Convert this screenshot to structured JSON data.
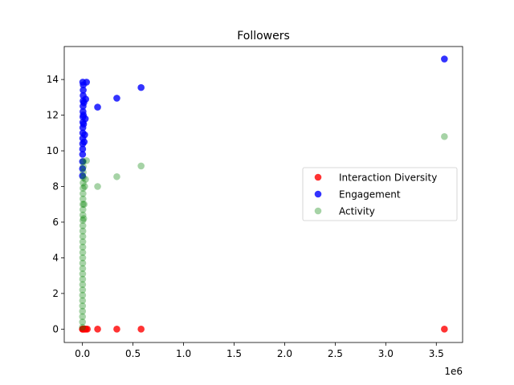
{
  "chart_data": {
    "type": "scatter",
    "title": "Followers",
    "xlabel": "",
    "ylabel": "",
    "x_offset_label": "1e6",
    "xlim": [
      -180000,
      3760000
    ],
    "ylim": [
      -0.75,
      15.85
    ],
    "x_ticks": [
      0,
      500000,
      1000000,
      1500000,
      2000000,
      2500000,
      3000000,
      3500000
    ],
    "x_tick_labels": [
      "0.0",
      "0.5",
      "1.0",
      "1.5",
      "2.0",
      "2.5",
      "3.0",
      "3.5"
    ],
    "y_ticks": [
      0,
      2,
      4,
      6,
      8,
      10,
      12,
      14
    ],
    "y_tick_labels": [
      "0",
      "2",
      "4",
      "6",
      "8",
      "10",
      "12",
      "14"
    ],
    "grid": false,
    "legend_position": "center-right",
    "series": [
      {
        "name": "Interaction Diversity",
        "color": "#ff0000",
        "alpha": 0.8,
        "points": [
          [
            0,
            0
          ],
          [
            2000,
            0
          ],
          [
            5000,
            0
          ],
          [
            8000,
            0
          ],
          [
            12000,
            0
          ],
          [
            18000,
            0
          ],
          [
            25000,
            0
          ],
          [
            35000,
            0
          ],
          [
            48000,
            0
          ],
          [
            150000,
            0
          ],
          [
            340000,
            0
          ],
          [
            580000,
            0
          ],
          [
            3580000,
            0
          ]
        ]
      },
      {
        "name": "Engagement",
        "color": "#0000ff",
        "alpha": 0.8,
        "points": [
          [
            500,
            8.6
          ],
          [
            800,
            9.0
          ],
          [
            1200,
            9.4
          ],
          [
            1500,
            9.8
          ],
          [
            2000,
            10.1
          ],
          [
            2500,
            10.4
          ],
          [
            3000,
            10.7
          ],
          [
            3500,
            11.0
          ],
          [
            4000,
            11.3
          ],
          [
            4500,
            11.6
          ],
          [
            5000,
            11.9
          ],
          [
            5500,
            12.2
          ],
          [
            6000,
            12.5
          ],
          [
            6500,
            12.8
          ],
          [
            7000,
            13.1
          ],
          [
            7500,
            13.4
          ],
          [
            8000,
            13.7
          ],
          [
            3000,
            13.85
          ],
          [
            9000,
            12.0
          ],
          [
            11000,
            11.5
          ],
          [
            14000,
            12.7
          ],
          [
            17000,
            10.5
          ],
          [
            22000,
            10.9
          ],
          [
            28000,
            11.8
          ],
          [
            32000,
            12.9
          ],
          [
            40000,
            13.85
          ],
          [
            150000,
            12.45
          ],
          [
            340000,
            12.95
          ],
          [
            580000,
            13.55
          ],
          [
            3580000,
            15.15
          ]
        ]
      },
      {
        "name": "Activity",
        "color": "#008000",
        "alpha": 0.35,
        "points": [
          [
            200,
            0.1
          ],
          [
            400,
            0.4
          ],
          [
            600,
            0.7
          ],
          [
            800,
            1.0
          ],
          [
            1000,
            1.3
          ],
          [
            1200,
            1.6
          ],
          [
            1400,
            1.9
          ],
          [
            1600,
            2.2
          ],
          [
            1800,
            2.5
          ],
          [
            2000,
            2.8
          ],
          [
            2200,
            3.1
          ],
          [
            2400,
            3.4
          ],
          [
            2600,
            3.7
          ],
          [
            2800,
            4.0
          ],
          [
            3000,
            4.3
          ],
          [
            3200,
            4.6
          ],
          [
            3400,
            4.9
          ],
          [
            3600,
            5.2
          ],
          [
            3800,
            5.5
          ],
          [
            4000,
            5.8
          ],
          [
            4200,
            6.1
          ],
          [
            4400,
            6.4
          ],
          [
            4600,
            6.7
          ],
          [
            4800,
            7.0
          ],
          [
            5000,
            7.3
          ],
          [
            5500,
            7.6
          ],
          [
            6000,
            7.9
          ],
          [
            6500,
            8.2
          ],
          [
            7000,
            8.5
          ],
          [
            7500,
            8.8
          ],
          [
            8000,
            9.1
          ],
          [
            8500,
            9.4
          ],
          [
            12000,
            6.2
          ],
          [
            16000,
            7.0
          ],
          [
            22000,
            8.0
          ],
          [
            30000,
            8.4
          ],
          [
            40000,
            9.45
          ],
          [
            150000,
            8.0
          ],
          [
            340000,
            8.55
          ],
          [
            580000,
            9.15
          ],
          [
            3580000,
            10.8
          ]
        ]
      }
    ]
  }
}
